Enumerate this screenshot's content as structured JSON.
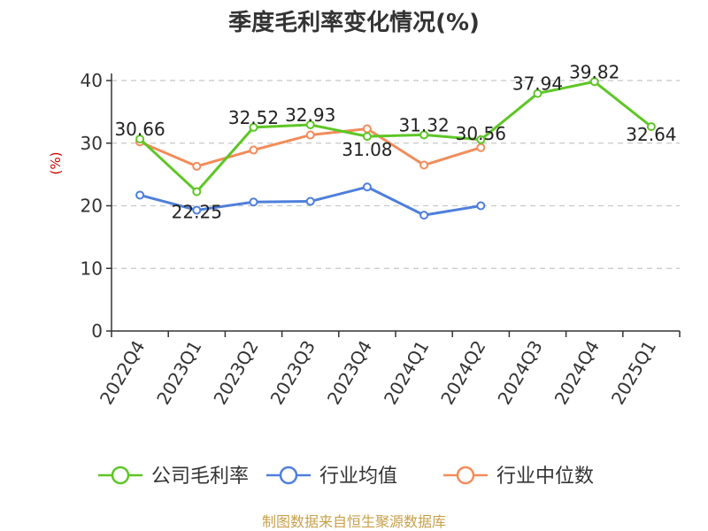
{
  "chart_data": {
    "type": "line",
    "title": "季度毛利率变化情况(%)",
    "ylabel": "(%)",
    "xlabel": "",
    "ylim": [
      0,
      40
    ],
    "yticks": [
      0,
      10,
      20,
      30,
      40
    ],
    "grid": true,
    "legend_position": "bottom",
    "categories": [
      "2022Q4",
      "2023Q1",
      "2023Q2",
      "2023Q3",
      "2023Q4",
      "2024Q1",
      "2024Q2",
      "2024Q3",
      "2024Q4",
      "2025Q1"
    ],
    "series": [
      {
        "name": "公司毛利率",
        "color": "#5ec626",
        "values": [
          30.66,
          22.25,
          32.52,
          32.93,
          31.08,
          31.32,
          30.56,
          37.94,
          39.82,
          32.64
        ],
        "labels": [
          "30.66",
          "22.25",
          "32.52",
          "32.93",
          "31.08",
          "31.32",
          "30.56",
          "37.94",
          "39.82",
          "32.64"
        ]
      },
      {
        "name": "行业均值",
        "color": "#4f7fdb",
        "values": [
          21.7,
          19.3,
          20.6,
          20.7,
          23.0,
          18.5,
          20.0,
          null,
          null,
          null
        ]
      },
      {
        "name": "行业中位数",
        "color": "#f28c5a",
        "values": [
          30.2,
          26.3,
          28.9,
          31.3,
          32.3,
          26.5,
          29.3,
          null,
          null,
          null
        ]
      }
    ]
  },
  "footer": {
    "source": "制图数据来自恒生聚源数据库"
  }
}
